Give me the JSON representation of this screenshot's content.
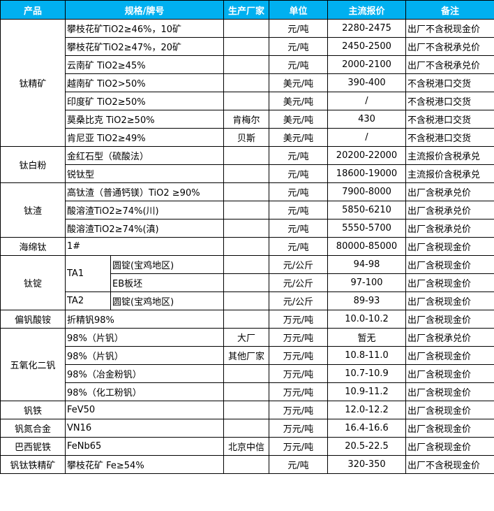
{
  "header": {
    "product": "产品",
    "spec": "规格/牌号",
    "maker": "生产厂家",
    "unit": "单位",
    "price": "主流报价",
    "note": "备注"
  },
  "colors": {
    "header_bg": "#00b0f0",
    "header_text": "#ffffff"
  },
  "groups": [
    {
      "product": "钛精矿",
      "rows": [
        {
          "spec": "攀枝花矿TiO2≥46%，10矿",
          "maker": "",
          "unit": "元/吨",
          "price": "2280-2475",
          "note": "出厂不含税现金价"
        },
        {
          "spec": "攀枝花矿TiO2≥47%，20矿",
          "maker": "",
          "unit": "元/吨",
          "price": "2450-2500",
          "note": "出厂不含税承兑价"
        },
        {
          "spec": "云南矿 TiO2≥45%",
          "maker": "",
          "unit": "元/吨",
          "price": "2000-2100",
          "note": "出厂不含税承兑价"
        },
        {
          "spec": "越南矿 TiO2>50%",
          "maker": "",
          "unit": "美元/吨",
          "price": "390-400",
          "note": "不含税港口交货"
        },
        {
          "spec": "印度矿 TiO2≥50%",
          "maker": "",
          "unit": "美元/吨",
          "price": "/",
          "note": "不含税港口交货"
        },
        {
          "spec": "莫桑比克 TiO2≥50%",
          "maker": "肯梅尔",
          "unit": "美元/吨",
          "price": "430",
          "note": "不含税港口交货"
        },
        {
          "spec": "肯尼亚 TiO2≥49%",
          "maker": "贝斯",
          "unit": "美元/吨",
          "price": "/",
          "note": "不含税港口交货"
        }
      ]
    },
    {
      "product": "钛白粉",
      "rows": [
        {
          "spec": "金红石型（硫酸法）",
          "maker": "",
          "unit": "元/吨",
          "price": "20200-22000",
          "note": "主流报价含税承兑"
        },
        {
          "spec": "锐钛型",
          "maker": "",
          "unit": "元/吨",
          "price": "18600-19000",
          "note": "主流报价含税承兑"
        }
      ]
    },
    {
      "product": "钛渣",
      "rows": [
        {
          "spec": "高钛渣（普通钙镁）TiO2 ≥90%",
          "maker": "",
          "unit": "元/吨",
          "price": "7900-8000",
          "note": "出厂含税承兑价"
        },
        {
          "spec": "酸溶渣TiO2≥74%(川)",
          "maker": "",
          "unit": "元/吨",
          "price": "5850-6210",
          "note": "出厂含税承兑价"
        },
        {
          "spec": "酸溶渣TiO2≥74%(滇)",
          "maker": "",
          "unit": "元/吨",
          "price": "5550-5700",
          "note": "出厂含税承兑价"
        }
      ]
    },
    {
      "product": "海绵钛",
      "rows": [
        {
          "spec": "1#",
          "maker": "",
          "unit": "元/吨",
          "price": "80000-85000",
          "note": "出厂含税现金价"
        }
      ]
    },
    {
      "product": "钛锭",
      "grades": [
        {
          "grade": "TA1",
          "rows": [
            {
              "form": "圆锭(宝鸡地区)",
              "unit": "元/公斤",
              "price": "94-98",
              "note": "出厂含税现金价"
            },
            {
              "form": "EB板坯",
              "unit": "元/公斤",
              "price": "97-100",
              "note": "出厂含税现金价"
            }
          ]
        },
        {
          "grade": "TA2",
          "rows": [
            {
              "form": "圆锭(宝鸡地区)",
              "unit": "元/公斤",
              "price": "89-93",
              "note": "出厂含税现金价"
            }
          ]
        }
      ]
    },
    {
      "product": "偏钒酸铵",
      "rows": [
        {
          "spec": "折精钒98%",
          "maker": "",
          "unit": "万元/吨",
          "price": "10.0-10.2",
          "note": "出厂含税现金价"
        }
      ]
    },
    {
      "product": "五氧化二钒",
      "rows": [
        {
          "spec": "98%（片钒）",
          "maker": "大厂",
          "unit": "万元/吨",
          "price": "暂无",
          "note": "出厂含税承兑价"
        },
        {
          "spec": "98%（片钒）",
          "maker": "其他厂家",
          "unit": "万元/吨",
          "price": "10.8-11.0",
          "note": "出厂含税现金价"
        },
        {
          "spec": "98%（冶金粉钒）",
          "maker": "",
          "unit": "万元/吨",
          "price": "10.7-10.9",
          "note": "出厂含税现金价"
        },
        {
          "spec": "98%（化工粉钒）",
          "maker": "",
          "unit": "万元/吨",
          "price": "10.9-11.2",
          "note": "出厂含税现金价"
        }
      ]
    },
    {
      "product": "钒铁",
      "rows": [
        {
          "spec": "FeV50",
          "maker": "",
          "unit": "万元/吨",
          "price": "12.0-12.2",
          "note": "出厂含税现金价"
        }
      ]
    },
    {
      "product": "钒氮合金",
      "rows": [
        {
          "spec": "VN16",
          "maker": "",
          "unit": "万元/吨",
          "price": "16.4-16.6",
          "note": "出厂含税现金价"
        }
      ]
    },
    {
      "product": "巴西铌铁",
      "rows": [
        {
          "spec": "FeNb65",
          "maker": "北京中信",
          "unit": "万元/吨",
          "price": "20.5-22.5",
          "note": "出厂含税现金价"
        }
      ]
    },
    {
      "product": "钒钛铁精矿",
      "rows": [
        {
          "spec": "攀枝花矿 Fe≥54%",
          "maker": "",
          "unit": "元/吨",
          "price": "320-350",
          "note": "出厂不含税现金价"
        }
      ]
    }
  ]
}
